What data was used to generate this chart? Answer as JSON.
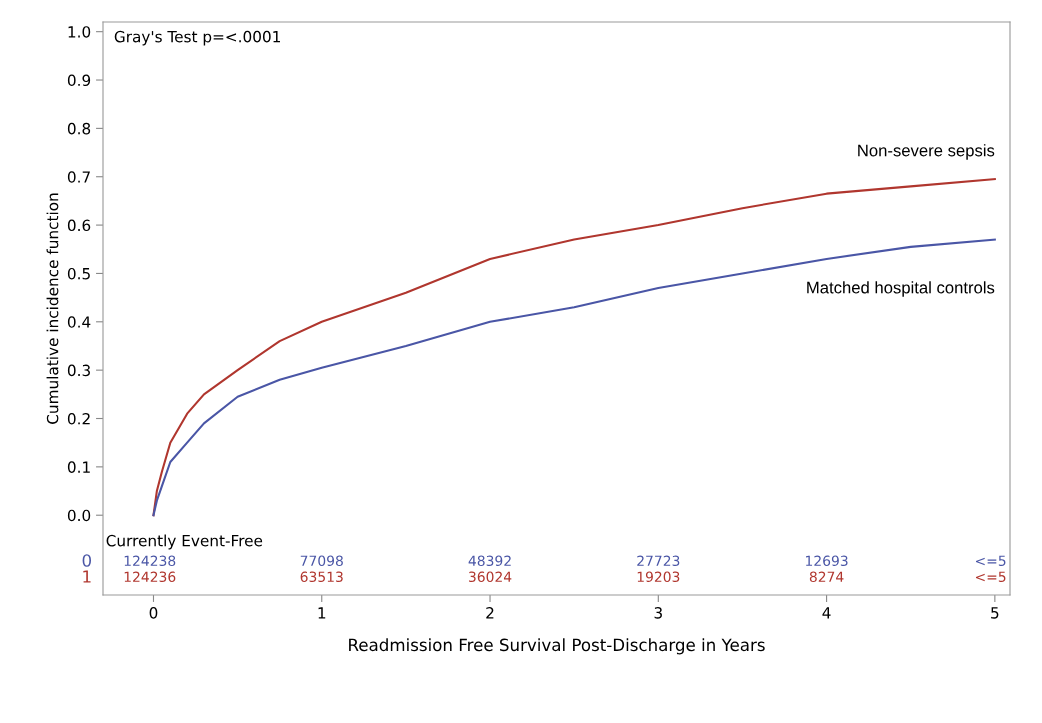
{
  "chart_data": {
    "type": "line",
    "ylabel": "Cumulative incidence function",
    "xlabel": "Readmission Free Survival Post-Discharge in Years",
    "xlim": [
      -0.3,
      5.09
    ],
    "xticks": [
      0,
      1,
      2,
      3,
      4,
      5
    ],
    "ylim": [
      -0.165,
      1.02
    ],
    "yticks": [
      {
        "value": 0,
        "label": "0.0"
      },
      0.1,
      0.2,
      0.3,
      0.4,
      0.5,
      0.6,
      0.7,
      0.8,
      0.9,
      {
        "value": 1,
        "label": "1.0"
      }
    ],
    "grid": false,
    "legend": false,
    "series": [
      {
        "name": "Non-severe sepsis",
        "color": "#b0362e",
        "x": [
          0,
          0.02,
          0.05,
          0.1,
          0.2,
          0.3,
          0.5,
          0.75,
          1,
          1.5,
          2,
          2.5,
          3,
          3.5,
          4,
          4.5,
          5
        ],
        "values": [
          0,
          0.05,
          0.09,
          0.15,
          0.21,
          0.25,
          0.3,
          0.36,
          0.4,
          0.46,
          0.53,
          0.57,
          0.6,
          0.635,
          0.665,
          0.68,
          0.695
        ]
      },
      {
        "name": "Matched hospital controls",
        "color": "#4a56a6",
        "x": [
          0,
          0.02,
          0.05,
          0.1,
          0.2,
          0.3,
          0.5,
          0.75,
          1,
          1.5,
          2,
          2.5,
          3,
          3.5,
          4,
          4.5,
          5
        ],
        "values": [
          0,
          0.03,
          0.06,
          0.11,
          0.15,
          0.19,
          0.245,
          0.28,
          0.305,
          0.35,
          0.4,
          0.43,
          0.47,
          0.5,
          0.53,
          0.555,
          0.57
        ]
      }
    ],
    "annotations": [
      "Gray's Test p=<.0001",
      "Currently Event-Free",
      "0",
      "124238",
      "77098",
      "48392",
      "27723",
      "12693",
      "<=5",
      "1",
      "124236",
      "63513",
      "36024",
      "19203",
      "8274",
      "<=5"
    ]
  }
}
